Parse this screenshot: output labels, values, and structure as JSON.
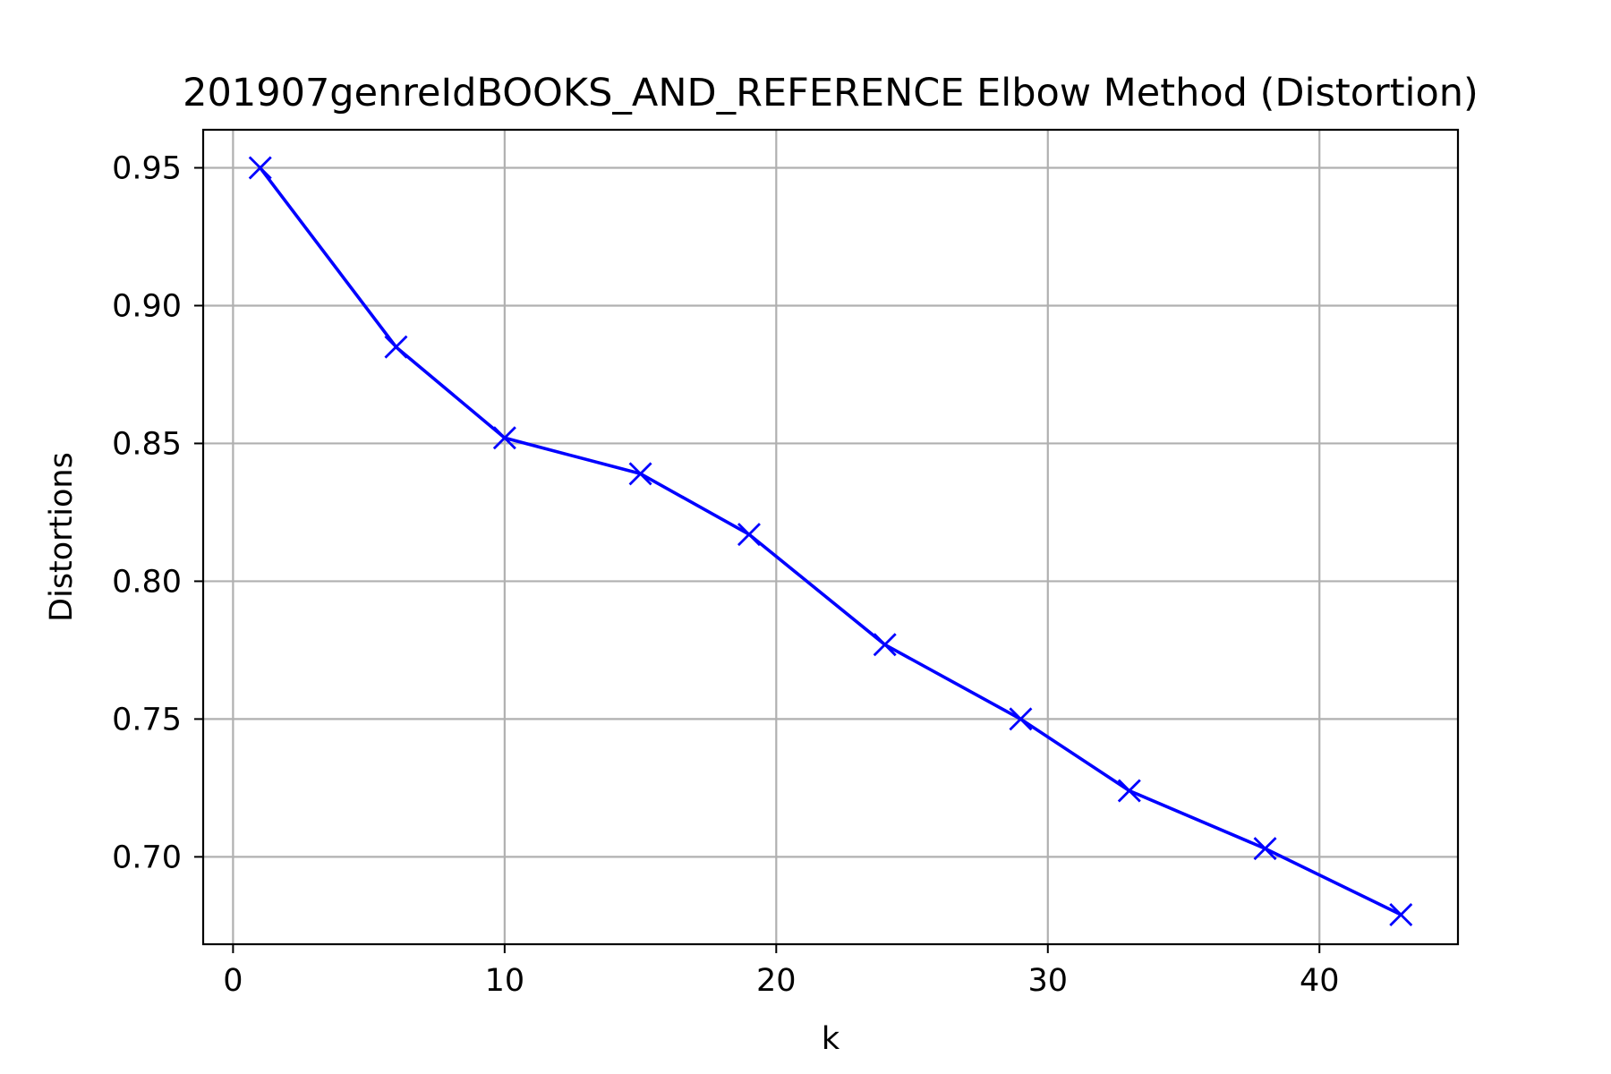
{
  "chart_data": {
    "type": "line",
    "title": "201907genreIdBOOKS_AND_REFERENCE Elbow Method (Distortion)",
    "xlabel": "k",
    "ylabel": "Distortions",
    "xlim": [
      -1.1,
      45.1
    ],
    "ylim": [
      0.6683,
      0.9638
    ],
    "xticks": [
      0,
      10,
      20,
      30,
      40
    ],
    "yticks": [
      0.7,
      0.75,
      0.8,
      0.85,
      0.9,
      0.95
    ],
    "xtick_labels": [
      "0",
      "10",
      "20",
      "30",
      "40"
    ],
    "ytick_labels": [
      "0.70",
      "0.75",
      "0.80",
      "0.85",
      "0.90",
      "0.95"
    ],
    "grid": true,
    "series": [
      {
        "color": "#0000ff",
        "marker": "x",
        "x": [
          1,
          6,
          10,
          15,
          19,
          24,
          29,
          33,
          38,
          43
        ],
        "y": [
          0.95,
          0.885,
          0.852,
          0.839,
          0.817,
          0.777,
          0.75,
          0.724,
          0.703,
          0.679
        ]
      }
    ]
  }
}
